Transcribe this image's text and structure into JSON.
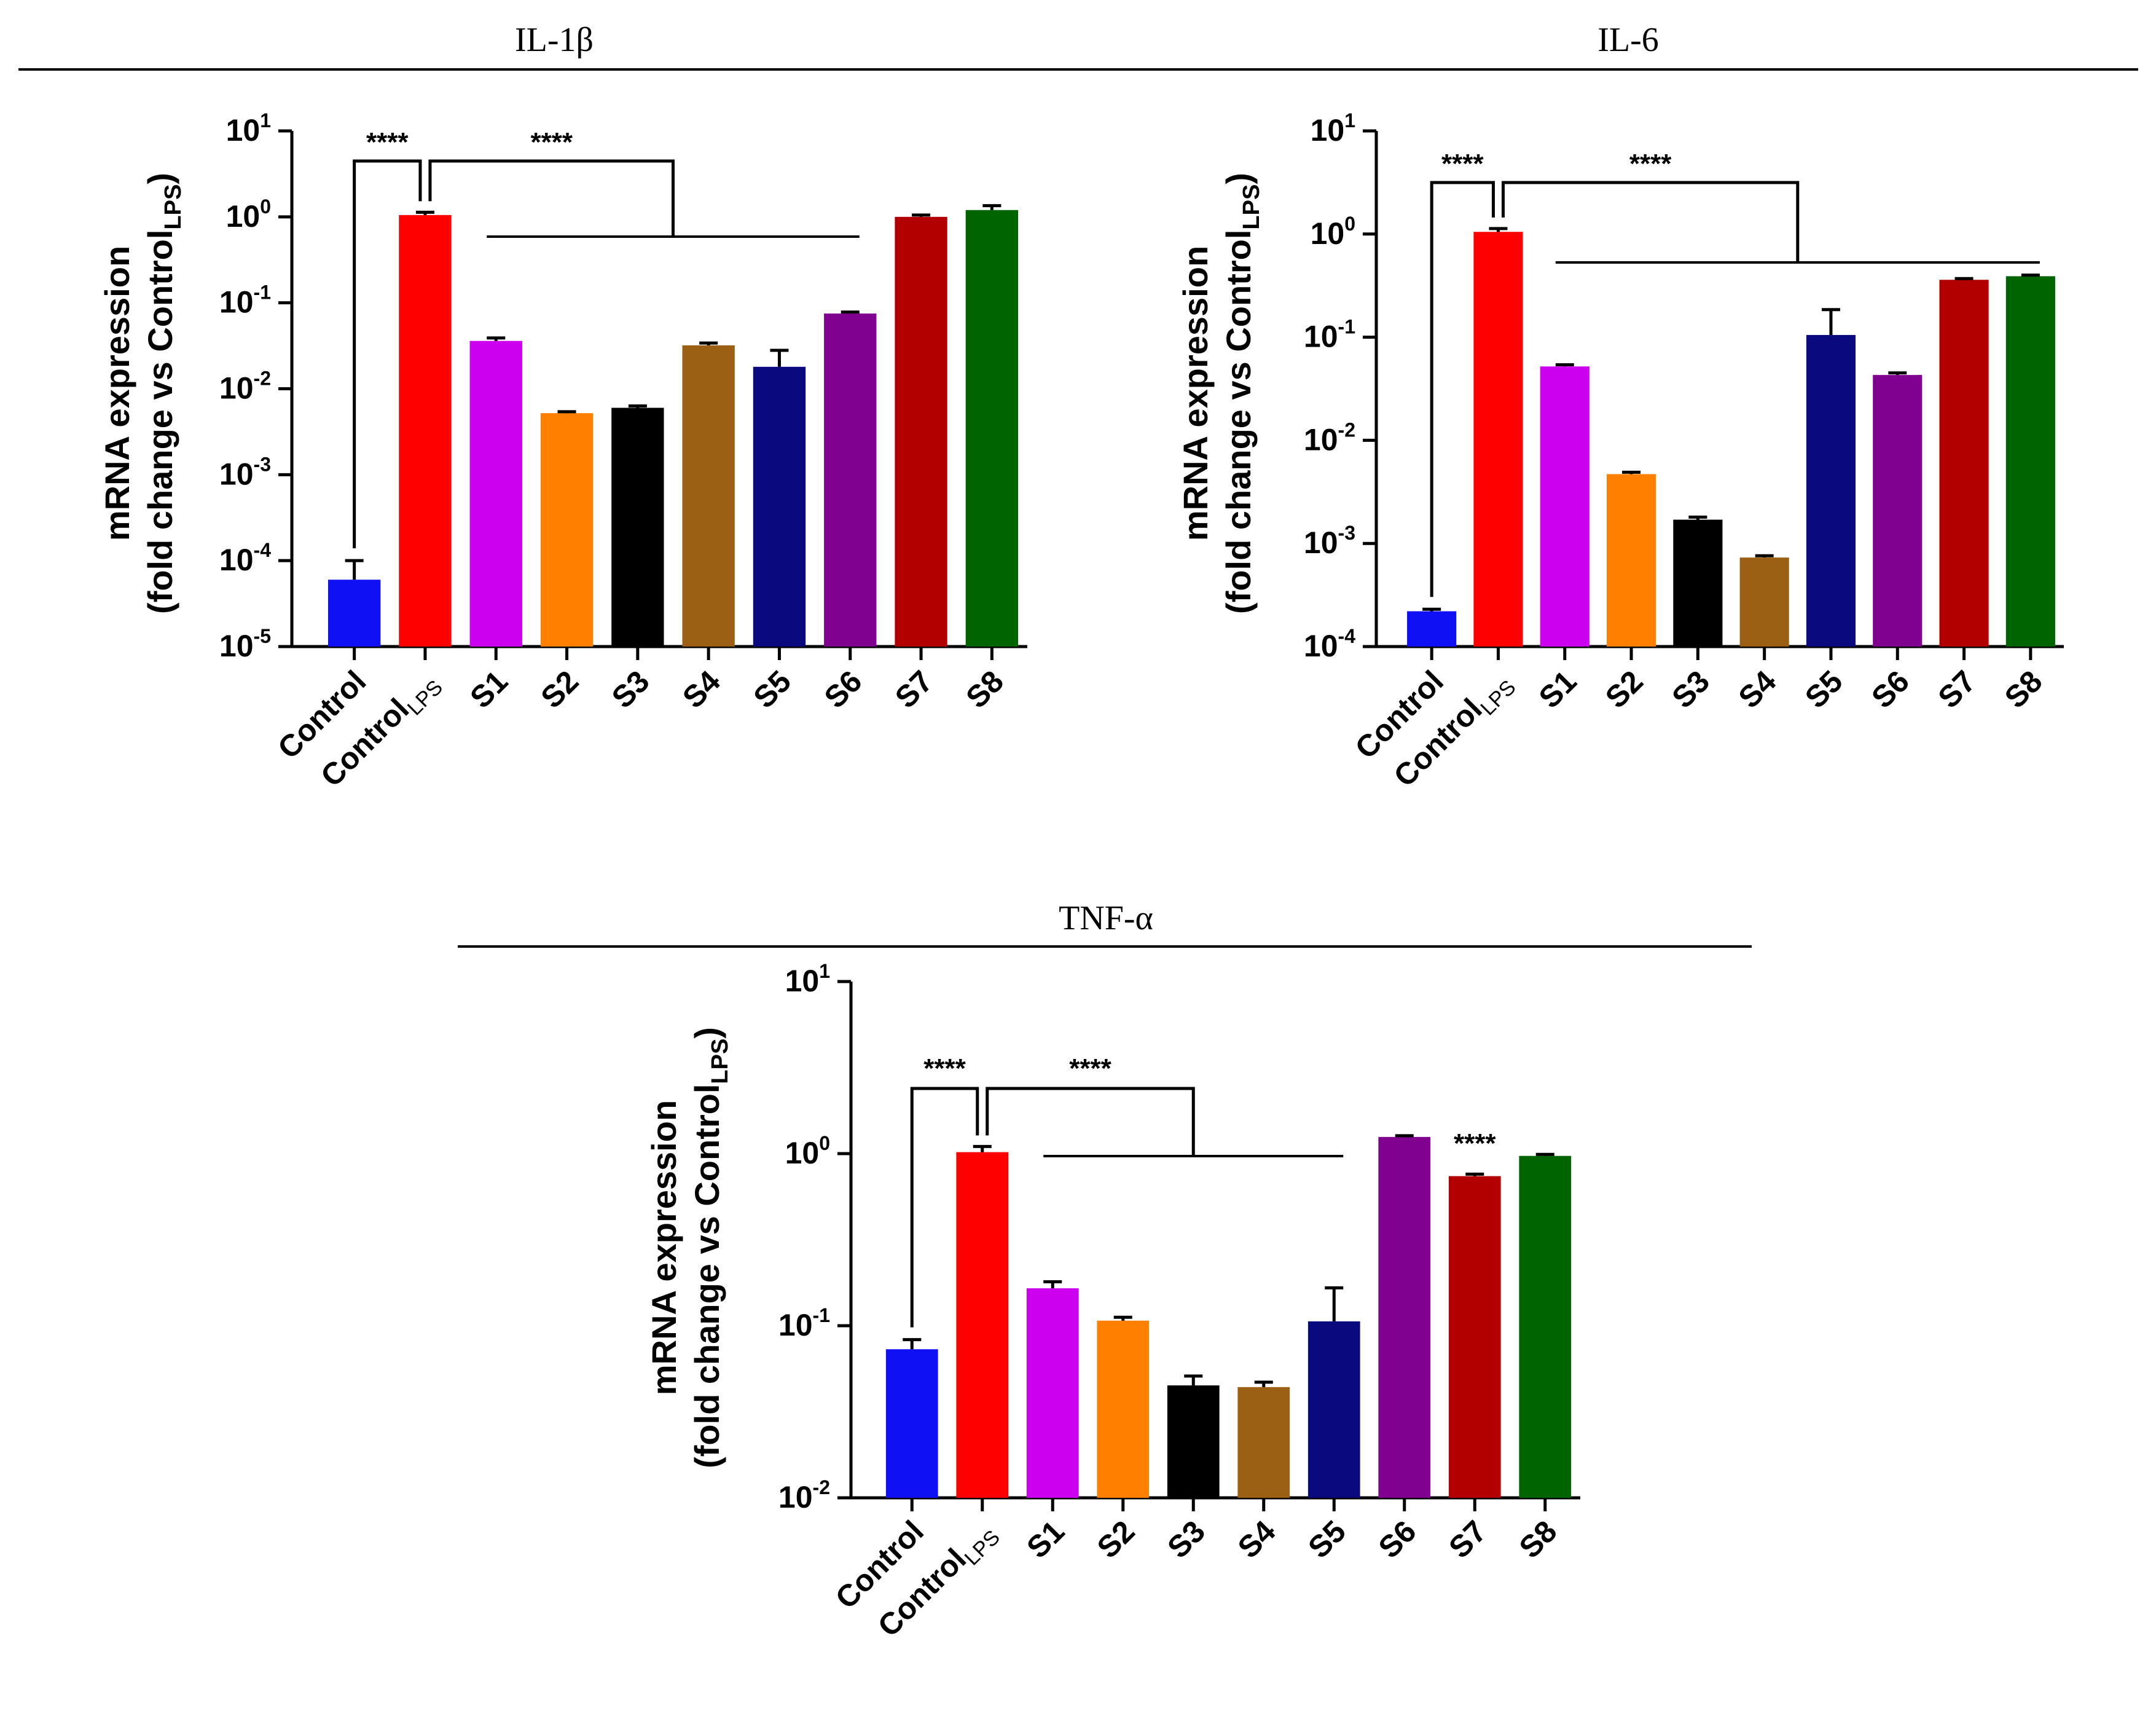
{
  "chart_data": [
    {
      "type": "bar",
      "title": "IL-1β",
      "ylabel_line1": "mRNA expression",
      "ylabel_line2_prefix": "(fold change vs Control",
      "ylabel_line2_sub": "LPS",
      "ylabel_line2_suffix": ")",
      "yscale": "log",
      "ylim": [
        1e-05,
        10
      ],
      "ytick_base": "10",
      "ytick_exponents": [
        "1",
        "0",
        "-1",
        "-2",
        "-3",
        "-4",
        "-5"
      ],
      "categories": [
        {
          "main": "Control",
          "sub": ""
        },
        {
          "main": "Control",
          "sub": "LPS"
        },
        {
          "main": "S1",
          "sub": ""
        },
        {
          "main": "S2",
          "sub": ""
        },
        {
          "main": "S3",
          "sub": ""
        },
        {
          "main": "S4",
          "sub": ""
        },
        {
          "main": "S5",
          "sub": ""
        },
        {
          "main": "S6",
          "sub": ""
        },
        {
          "main": "S7",
          "sub": ""
        },
        {
          "main": "S8",
          "sub": ""
        }
      ],
      "values": [
        6e-05,
        1.05,
        0.036,
        0.0052,
        0.006,
        0.032,
        0.018,
        0.075,
        1.0,
        1.2
      ],
      "errors": [
        4e-05,
        0.08,
        0.003,
        0.0002,
        0.0003,
        0.002,
        0.01,
        0.003,
        0.05,
        0.15
      ],
      "colors": [
        "#1010f5",
        "#ff0000",
        "#cc00ee",
        "#ff8000",
        "#000000",
        "#9c6014",
        "#0a0a7e",
        "#800090",
        "#b20000",
        "#006400"
      ],
      "significance": [
        {
          "label": "****",
          "type": "pair",
          "a": 0,
          "b": 1
        },
        {
          "label": "****",
          "type": "group",
          "a": 1,
          "from": 2,
          "to": 7
        }
      ]
    },
    {
      "type": "bar",
      "title": "IL-6",
      "ylabel_line1": "mRNA expression",
      "ylabel_line2_prefix": "(fold change vs Control",
      "ylabel_line2_sub": "LPS",
      "ylabel_line2_suffix": ")",
      "yscale": "log",
      "ylim": [
        0.0001,
        10
      ],
      "ytick_base": "10",
      "ytick_exponents": [
        "1",
        "0",
        "-1",
        "-2",
        "-3",
        "-4"
      ],
      "categories": [
        {
          "main": "Control",
          "sub": ""
        },
        {
          "main": "Control",
          "sub": "LPS"
        },
        {
          "main": "S1",
          "sub": ""
        },
        {
          "main": "S2",
          "sub": ""
        },
        {
          "main": "S3",
          "sub": ""
        },
        {
          "main": "S4",
          "sub": ""
        },
        {
          "main": "S5",
          "sub": ""
        },
        {
          "main": "S6",
          "sub": ""
        },
        {
          "main": "S7",
          "sub": ""
        },
        {
          "main": "S8",
          "sub": ""
        }
      ],
      "values": [
        0.00022,
        1.05,
        0.052,
        0.0047,
        0.0017,
        0.00073,
        0.105,
        0.043,
        0.36,
        0.39
      ],
      "errors": [
        1e-05,
        0.08,
        0.002,
        0.0002,
        0.0001,
        3e-05,
        0.08,
        0.002,
        0.01,
        0.01
      ],
      "colors": [
        "#1010f5",
        "#ff0000",
        "#cc00ee",
        "#ff8000",
        "#000000",
        "#9c6014",
        "#0a0a7e",
        "#800090",
        "#b20000",
        "#006400"
      ],
      "significance": [
        {
          "label": "****",
          "type": "pair",
          "a": 0,
          "b": 1
        },
        {
          "label": "****",
          "type": "group",
          "a": 1,
          "from": 2,
          "to": 9
        }
      ]
    },
    {
      "type": "bar",
      "title": "TNF-α",
      "ylabel_line1": "mRNA expression",
      "ylabel_line2_prefix": "(fold change vs Control",
      "ylabel_line2_sub": "LPS",
      "ylabel_line2_suffix": ")",
      "yscale": "log",
      "ylim": [
        0.01,
        10
      ],
      "ytick_base": "10",
      "ytick_exponents": [
        "1",
        "0",
        "-1",
        "-2"
      ],
      "categories": [
        {
          "main": "Control",
          "sub": ""
        },
        {
          "main": "Control",
          "sub": "LPS"
        },
        {
          "main": "S1",
          "sub": ""
        },
        {
          "main": "S2",
          "sub": ""
        },
        {
          "main": "S3",
          "sub": ""
        },
        {
          "main": "S4",
          "sub": ""
        },
        {
          "main": "S5",
          "sub": ""
        },
        {
          "main": "S6",
          "sub": ""
        },
        {
          "main": "S7",
          "sub": ""
        },
        {
          "main": "S8",
          "sub": ""
        }
      ],
      "values": [
        0.073,
        1.02,
        0.165,
        0.107,
        0.045,
        0.044,
        0.106,
        1.25,
        0.74,
        0.97
      ],
      "errors": [
        0.01,
        0.08,
        0.015,
        0.005,
        0.006,
        0.003,
        0.06,
        0.02,
        0.02,
        0.02
      ],
      "colors": [
        "#1010f5",
        "#ff0000",
        "#cc00ee",
        "#ff8000",
        "#000000",
        "#9c6014",
        "#0a0a7e",
        "#800090",
        "#b20000",
        "#006400"
      ],
      "significance": [
        {
          "label": "****",
          "type": "pair",
          "a": 0,
          "b": 1
        },
        {
          "label": "****",
          "type": "group",
          "a": 1,
          "from": 2,
          "to": 6
        },
        {
          "label": "****",
          "type": "single",
          "a": 8
        }
      ]
    }
  ]
}
